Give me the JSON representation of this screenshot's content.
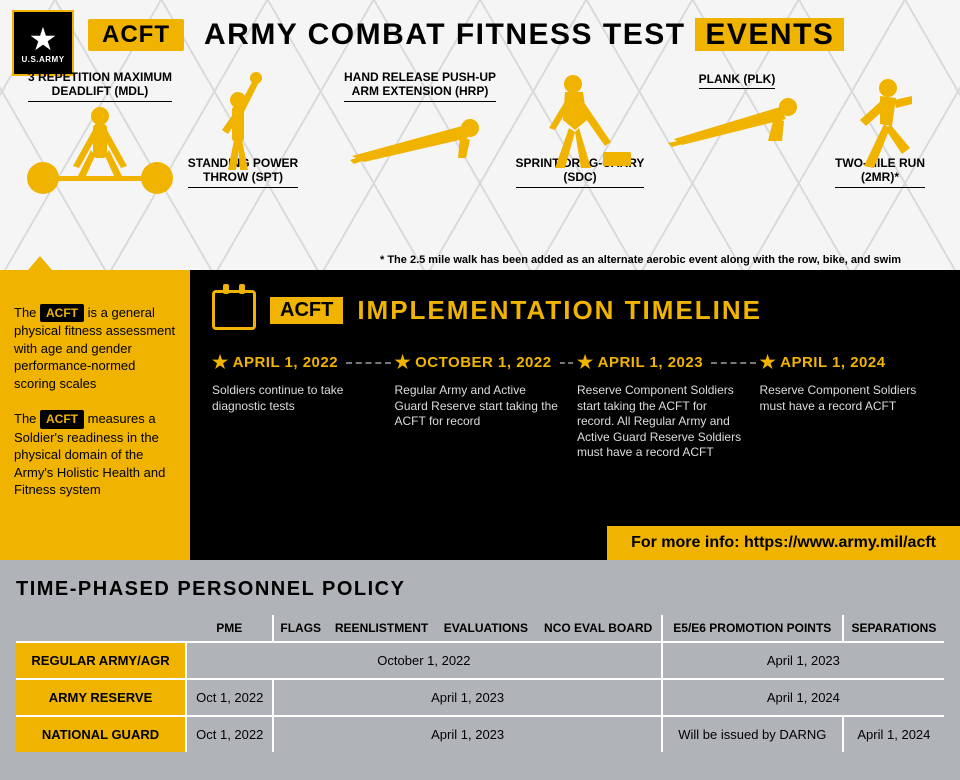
{
  "colors": {
    "gold": "#f0b400",
    "black": "#000000",
    "grey_bg": "#b0b4b8",
    "light_grey": "#d8dadd"
  },
  "logo": {
    "brand": "U.S.ARMY"
  },
  "header": {
    "acft_label": "ACFT",
    "title_prefix": "ARMY COMBAT FITNESS TEST",
    "title_suffix": "EVENTS",
    "footnote": "* The 2.5 mile walk has been added as an alternate aerobic event along with the row, bike, and swim"
  },
  "events": [
    {
      "label": "3 REPETITION MAXIMUM\nDEADLIFT (MDL)"
    },
    {
      "label": "STANDING POWER\nTHROW (SPT)"
    },
    {
      "label": "HAND RELEASE PUSH-UP\nARM EXTENSION (HRP)"
    },
    {
      "label": "SPRINT-DRAG-CARRY\n(SDC)"
    },
    {
      "label": "PLANK (PLK)"
    },
    {
      "label": "TWO-MILE RUN\n(2MR)*"
    }
  ],
  "sidebar": {
    "p1_pre": "The ",
    "p1_tag": "ACFT",
    "p1_post": " is a general physical fitness assessment with age and gender performance-normed scoring scales",
    "p2_pre": "The ",
    "p2_tag": "ACFT",
    "p2_post": " measures a Soldier's readiness in the physical domain of the Army's Holistic Health and Fitness system"
  },
  "timeline": {
    "acft_box": "ACFT",
    "title": "IMPLEMENTATION TIMELINE",
    "items": [
      {
        "date": "APRIL 1, 2022",
        "desc": "Soldiers continue to take diagnostic tests"
      },
      {
        "date": "OCTOBER 1, 2022",
        "desc": "Regular Army and Active Guard Reserve start taking the ACFT for record"
      },
      {
        "date": "APRIL 1, 2023",
        "desc": "Reserve Component Soldiers start taking the ACFT for record. All Regular Army and Active Guard Reserve Soldiers must have a record ACFT"
      },
      {
        "date": "APRIL 1, 2024",
        "desc": "Reserve Component Soldiers must have a record ACFT"
      }
    ],
    "info": "For more info: https://www.army.mil/acft"
  },
  "policy": {
    "title": "TIME-PHASED PERSONNEL POLICY",
    "columns": [
      "",
      "PME",
      "FLAGS",
      "REENLISTMENT",
      "EVALUATIONS",
      "NCO EVAL BOARD",
      "E5/E6 PROMOTION POINTS",
      "SEPARATIONS"
    ],
    "rows": [
      {
        "label": "REGULAR ARMY/AGR",
        "cells": [
          {
            "text": "October 1, 2022",
            "span": 5
          },
          {
            "text": "April 1, 2023",
            "span": 2
          }
        ]
      },
      {
        "label": "ARMY RESERVE",
        "cells": [
          {
            "text": "Oct  1, 2022",
            "span": 1
          },
          {
            "text": "April 1, 2023",
            "span": 4
          },
          {
            "text": "April 1, 2024",
            "span": 2
          }
        ]
      },
      {
        "label": "NATIONAL GUARD",
        "cells": [
          {
            "text": "Oct 1, 2022",
            "span": 1
          },
          {
            "text": "April 1, 2023",
            "span": 4
          },
          {
            "text": "Will be issued by DARNG",
            "span": 1
          },
          {
            "text": "April 1, 2024",
            "span": 1
          }
        ]
      }
    ]
  }
}
